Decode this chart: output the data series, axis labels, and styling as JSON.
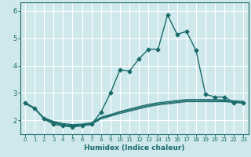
{
  "title": "",
  "xlabel": "Humidex (Indice chaleur)",
  "bg_color": "#cfe8ec",
  "grid_color": "#ffffff",
  "line_color": "#1a6b6b",
  "xlim": [
    -0.5,
    23.5
  ],
  "ylim": [
    1.5,
    6.3
  ],
  "yticks": [
    2,
    3,
    4,
    5,
    6
  ],
  "xticks": [
    0,
    1,
    2,
    3,
    4,
    5,
    6,
    7,
    8,
    9,
    10,
    11,
    12,
    13,
    14,
    15,
    16,
    17,
    18,
    19,
    20,
    21,
    22,
    23
  ],
  "main_line": {
    "x": [
      0,
      1,
      2,
      3,
      4,
      5,
      6,
      7,
      8,
      9,
      10,
      11,
      12,
      13,
      14,
      15,
      16,
      17,
      18,
      19,
      20,
      21,
      22,
      23
    ],
    "y": [
      2.65,
      2.45,
      2.05,
      1.85,
      1.8,
      1.75,
      1.8,
      1.85,
      2.3,
      3.0,
      3.85,
      3.8,
      4.25,
      4.6,
      4.6,
      5.85,
      5.15,
      5.25,
      4.55,
      2.95,
      2.85,
      2.85,
      2.65,
      2.65
    ]
  },
  "flat_lines": [
    {
      "x": [
        0,
        1,
        2,
        3,
        4,
        5,
        6,
        7,
        8,
        9,
        10,
        11,
        12,
        13,
        14,
        15,
        16,
        17,
        18,
        19,
        20,
        21,
        22,
        23
      ],
      "y": [
        2.62,
        2.43,
        2.05,
        1.9,
        1.82,
        1.78,
        1.8,
        1.85,
        2.05,
        2.15,
        2.25,
        2.33,
        2.42,
        2.5,
        2.56,
        2.6,
        2.64,
        2.68,
        2.68,
        2.68,
        2.68,
        2.68,
        2.65,
        2.63
      ]
    },
    {
      "x": [
        0,
        1,
        2,
        3,
        4,
        5,
        6,
        7,
        8,
        9,
        10,
        11,
        12,
        13,
        14,
        15,
        16,
        17,
        18,
        19,
        20,
        21,
        22,
        23
      ],
      "y": [
        2.62,
        2.43,
        2.07,
        1.93,
        1.85,
        1.81,
        1.83,
        1.88,
        2.08,
        2.18,
        2.29,
        2.37,
        2.46,
        2.54,
        2.6,
        2.64,
        2.68,
        2.72,
        2.72,
        2.72,
        2.72,
        2.71,
        2.68,
        2.66
      ]
    },
    {
      "x": [
        0,
        1,
        2,
        3,
        4,
        5,
        6,
        7,
        8,
        9,
        10,
        11,
        12,
        13,
        14,
        15,
        16,
        17,
        18,
        19,
        20,
        21,
        22,
        23
      ],
      "y": [
        2.62,
        2.43,
        2.09,
        1.96,
        1.88,
        1.84,
        1.86,
        1.91,
        2.11,
        2.21,
        2.32,
        2.41,
        2.5,
        2.58,
        2.64,
        2.68,
        2.72,
        2.76,
        2.76,
        2.76,
        2.76,
        2.74,
        2.71,
        2.69
      ]
    }
  ]
}
